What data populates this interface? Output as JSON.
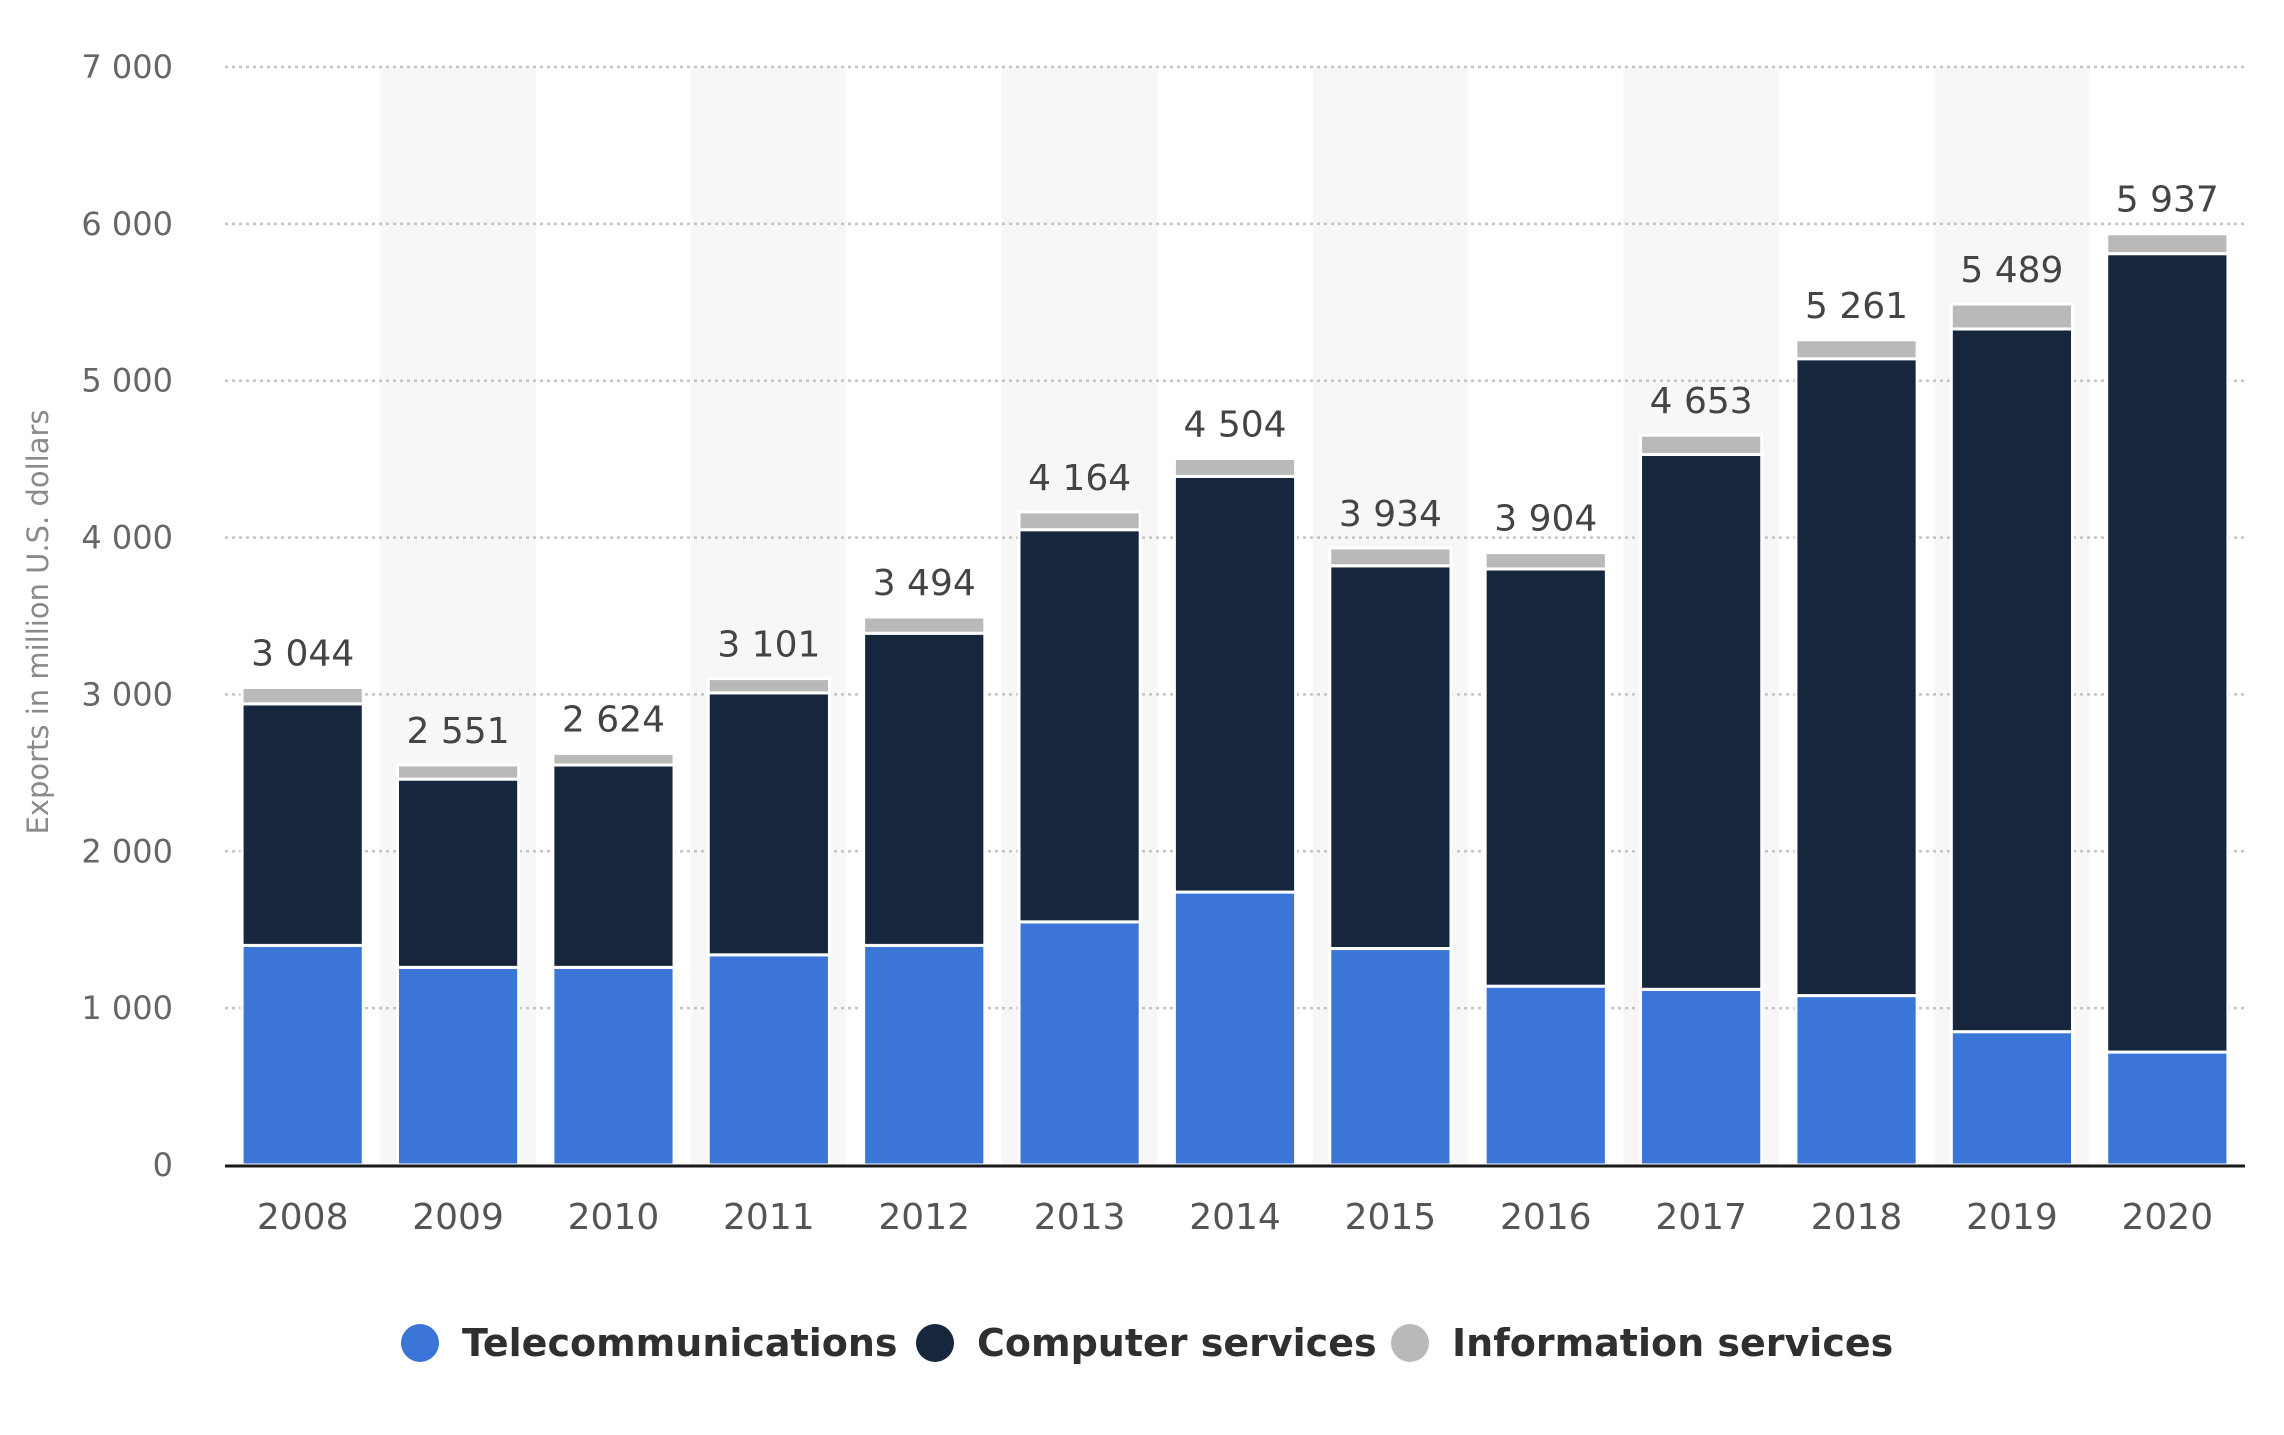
{
  "chart_data": {
    "type": "bar",
    "stacked": true,
    "ylabel": "Exports in million U.S. dollars",
    "xlabel": "",
    "ylim": [
      0,
      7000
    ],
    "yticks": [
      0,
      1000,
      2000,
      3000,
      4000,
      5000,
      6000,
      7000
    ],
    "ytick_labels": [
      "0",
      "1 000",
      "2 000",
      "3 000",
      "4 000",
      "5 000",
      "6 000",
      "7 000"
    ],
    "grid": true,
    "legend_position": "bottom-center",
    "categories": [
      "2008",
      "2009",
      "2010",
      "2011",
      "2012",
      "2013",
      "2014",
      "2015",
      "2016",
      "2017",
      "2018",
      "2019",
      "2020"
    ],
    "series": [
      {
        "name": "Telecommunications",
        "color": "#3c75d8",
        "values": [
          1400,
          1260,
          1260,
          1340,
          1400,
          1550,
          1740,
          1380,
          1140,
          1120,
          1080,
          850,
          720
        ]
      },
      {
        "name": "Computer services",
        "color": "#16263d",
        "values": [
          1540,
          1200,
          1290,
          1670,
          1990,
          2500,
          2650,
          2440,
          2660,
          3410,
          4060,
          4480,
          5090
        ]
      },
      {
        "name": "Information services",
        "color": "#b9b9b9",
        "values": [
          104,
          91,
          74,
          91,
          104,
          114,
          114,
          114,
          104,
          123,
          121,
          159,
          127
        ]
      }
    ],
    "totals": [
      3044,
      2551,
      2624,
      3101,
      3494,
      4164,
      4504,
      3934,
      3904,
      4653,
      5261,
      5489,
      5937
    ],
    "total_labels": [
      "3 044",
      "2 551",
      "2 624",
      "3 101",
      "3 494",
      "4 164",
      "4 504",
      "3 934",
      "3 904",
      "4 653",
      "5 261",
      "5 489",
      "5 937"
    ]
  }
}
